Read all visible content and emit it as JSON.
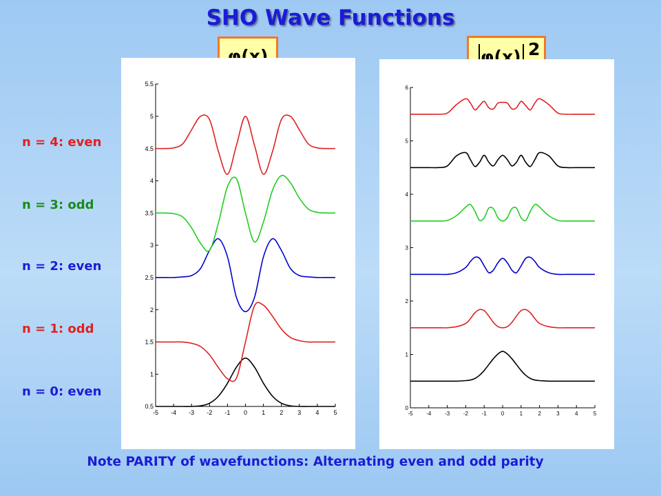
{
  "title": "SHO Wave Functions",
  "formula_left": "φ(x)",
  "formula_right": {
    "inner": "φ(x)",
    "exponent": "2"
  },
  "row_labels": [
    {
      "text": "n = 4: even",
      "color": "#e02020"
    },
    {
      "text": "n = 3: odd",
      "color": "#1a8a1a"
    },
    {
      "text": "n = 2: even",
      "color": "#1b1bd6"
    },
    {
      "text": "n = 1: odd",
      "color": "#e02020"
    },
    {
      "text": "n = 0: even",
      "color": "#1b1bd6"
    }
  ],
  "note": "Note PARITY of wavefunctions: Alternating even and odd parity",
  "chart_data": [
    {
      "type": "line",
      "title": "",
      "xlabel": "",
      "ylabel": "",
      "xlim": [
        -5,
        5
      ],
      "ylim": [
        0.5,
        5.5
      ],
      "xticks": [
        -5,
        -4,
        -3,
        -2,
        -1,
        0,
        1,
        2,
        3,
        4,
        5
      ],
      "yticks": [
        0.5,
        1,
        1.5,
        2,
        2.5,
        3,
        3.5,
        4,
        4.5,
        5,
        5.5
      ],
      "grid": false,
      "x": [
        -5,
        -4.5,
        -4,
        -3.5,
        -3,
        -2.5,
        -2,
        -1.5,
        -1,
        -0.5,
        0,
        0.5,
        1,
        1.5,
        2,
        2.5,
        3,
        3.5,
        4,
        4.5,
        5
      ],
      "series": [
        {
          "color": "#000000",
          "y": [
            0.5,
            0.5,
            0.5,
            0.5,
            0.5,
            0.51,
            0.55,
            0.66,
            0.86,
            1.11,
            1.25,
            1.11,
            0.86,
            0.66,
            0.55,
            0.51,
            0.5,
            0.5,
            0.5,
            0.5,
            0.5
          ]
        },
        {
          "color": "#e02020",
          "y": [
            1.5,
            1.5,
            1.5,
            1.5,
            1.48,
            1.43,
            1.3,
            1.1,
            0.93,
            0.94,
            1.5,
            2.06,
            2.07,
            1.9,
            1.7,
            1.57,
            1.52,
            1.5,
            1.5,
            1.5,
            1.5
          ]
        },
        {
          "color": "#0000cc",
          "y": [
            2.5,
            2.5,
            2.5,
            2.51,
            2.53,
            2.64,
            2.92,
            3.1,
            2.82,
            2.19,
            1.97,
            2.19,
            2.82,
            3.1,
            2.92,
            2.64,
            2.53,
            2.51,
            2.5,
            2.5,
            2.5
          ]
        },
        {
          "color": "#22cc22",
          "y": [
            3.5,
            3.5,
            3.49,
            3.44,
            3.27,
            3.03,
            2.92,
            3.35,
            3.91,
            4.03,
            3.5,
            3.05,
            3.36,
            3.85,
            4.08,
            3.97,
            3.73,
            3.56,
            3.51,
            3.5,
            3.5
          ]
        },
        {
          "color": "#e02020",
          "y": [
            4.5,
            4.5,
            4.51,
            4.57,
            4.79,
            5.0,
            4.95,
            4.45,
            4.1,
            4.55,
            5.0,
            4.55,
            4.1,
            4.45,
            4.95,
            5.0,
            4.79,
            4.57,
            4.51,
            4.5,
            4.5
          ]
        }
      ]
    },
    {
      "type": "line",
      "title": "",
      "xlabel": "",
      "ylabel": "",
      "xlim": [
        -5,
        5
      ],
      "ylim": [
        0,
        6
      ],
      "xticks": [
        -5,
        -4,
        -3,
        -2,
        -1,
        0,
        1,
        2,
        3,
        4,
        5
      ],
      "yticks": [
        0,
        1,
        2,
        3,
        4,
        5,
        6
      ],
      "grid": false,
      "x": [
        -5,
        -4.5,
        -4,
        -3.5,
        -3,
        -2.5,
        -2,
        -1.75,
        -1.5,
        -1.25,
        -1,
        -0.75,
        -0.5,
        -0.25,
        0,
        0.25,
        0.5,
        0.75,
        1,
        1.25,
        1.5,
        1.75,
        2,
        2.5,
        3,
        3.5,
        4,
        4.5,
        5
      ],
      "series": [
        {
          "color": "#000000",
          "y": [
            0.5,
            0.5,
            0.5,
            0.5,
            0.5,
            0.5,
            0.51,
            0.52,
            0.55,
            0.61,
            0.7,
            0.81,
            0.92,
            1.01,
            1.06,
            1.01,
            0.92,
            0.81,
            0.7,
            0.61,
            0.55,
            0.52,
            0.51,
            0.5,
            0.5,
            0.5,
            0.5,
            0.5,
            0.5
          ]
        },
        {
          "color": "#e02020",
          "y": [
            1.5,
            1.5,
            1.5,
            1.5,
            1.5,
            1.52,
            1.58,
            1.67,
            1.78,
            1.84,
            1.82,
            1.72,
            1.6,
            1.52,
            1.5,
            1.52,
            1.6,
            1.72,
            1.82,
            1.84,
            1.78,
            1.67,
            1.58,
            1.52,
            1.5,
            1.5,
            1.5,
            1.5,
            1.5
          ]
        },
        {
          "color": "#0000cc",
          "y": [
            2.5,
            2.5,
            2.5,
            2.5,
            2.5,
            2.53,
            2.63,
            2.74,
            2.82,
            2.8,
            2.66,
            2.53,
            2.58,
            2.72,
            2.8,
            2.72,
            2.58,
            2.53,
            2.66,
            2.8,
            2.82,
            2.74,
            2.63,
            2.53,
            2.5,
            2.5,
            2.5,
            2.5,
            2.5
          ]
        },
        {
          "color": "#22cc22",
          "y": [
            3.5,
            3.5,
            3.5,
            3.5,
            3.51,
            3.6,
            3.76,
            3.81,
            3.68,
            3.51,
            3.56,
            3.74,
            3.73,
            3.56,
            3.5,
            3.56,
            3.73,
            3.74,
            3.56,
            3.51,
            3.68,
            3.81,
            3.76,
            3.6,
            3.51,
            3.5,
            3.5,
            3.5,
            3.5
          ]
        },
        {
          "color": "#000000",
          "y": [
            4.5,
            4.5,
            4.5,
            4.5,
            4.53,
            4.72,
            4.78,
            4.65,
            4.52,
            4.6,
            4.73,
            4.6,
            4.53,
            4.65,
            4.73,
            4.65,
            4.53,
            4.6,
            4.73,
            4.6,
            4.52,
            4.65,
            4.78,
            4.72,
            4.53,
            4.5,
            4.5,
            4.5,
            4.5
          ]
        },
        {
          "color": "#e02020",
          "y": [
            5.5,
            5.5,
            5.5,
            5.5,
            5.52,
            5.68,
            5.79,
            5.71,
            5.58,
            5.66,
            5.74,
            5.62,
            5.6,
            5.71,
            5.72,
            5.71,
            5.6,
            5.62,
            5.74,
            5.66,
            5.58,
            5.71,
            5.79,
            5.68,
            5.52,
            5.5,
            5.5,
            5.5,
            5.5
          ]
        }
      ]
    }
  ]
}
